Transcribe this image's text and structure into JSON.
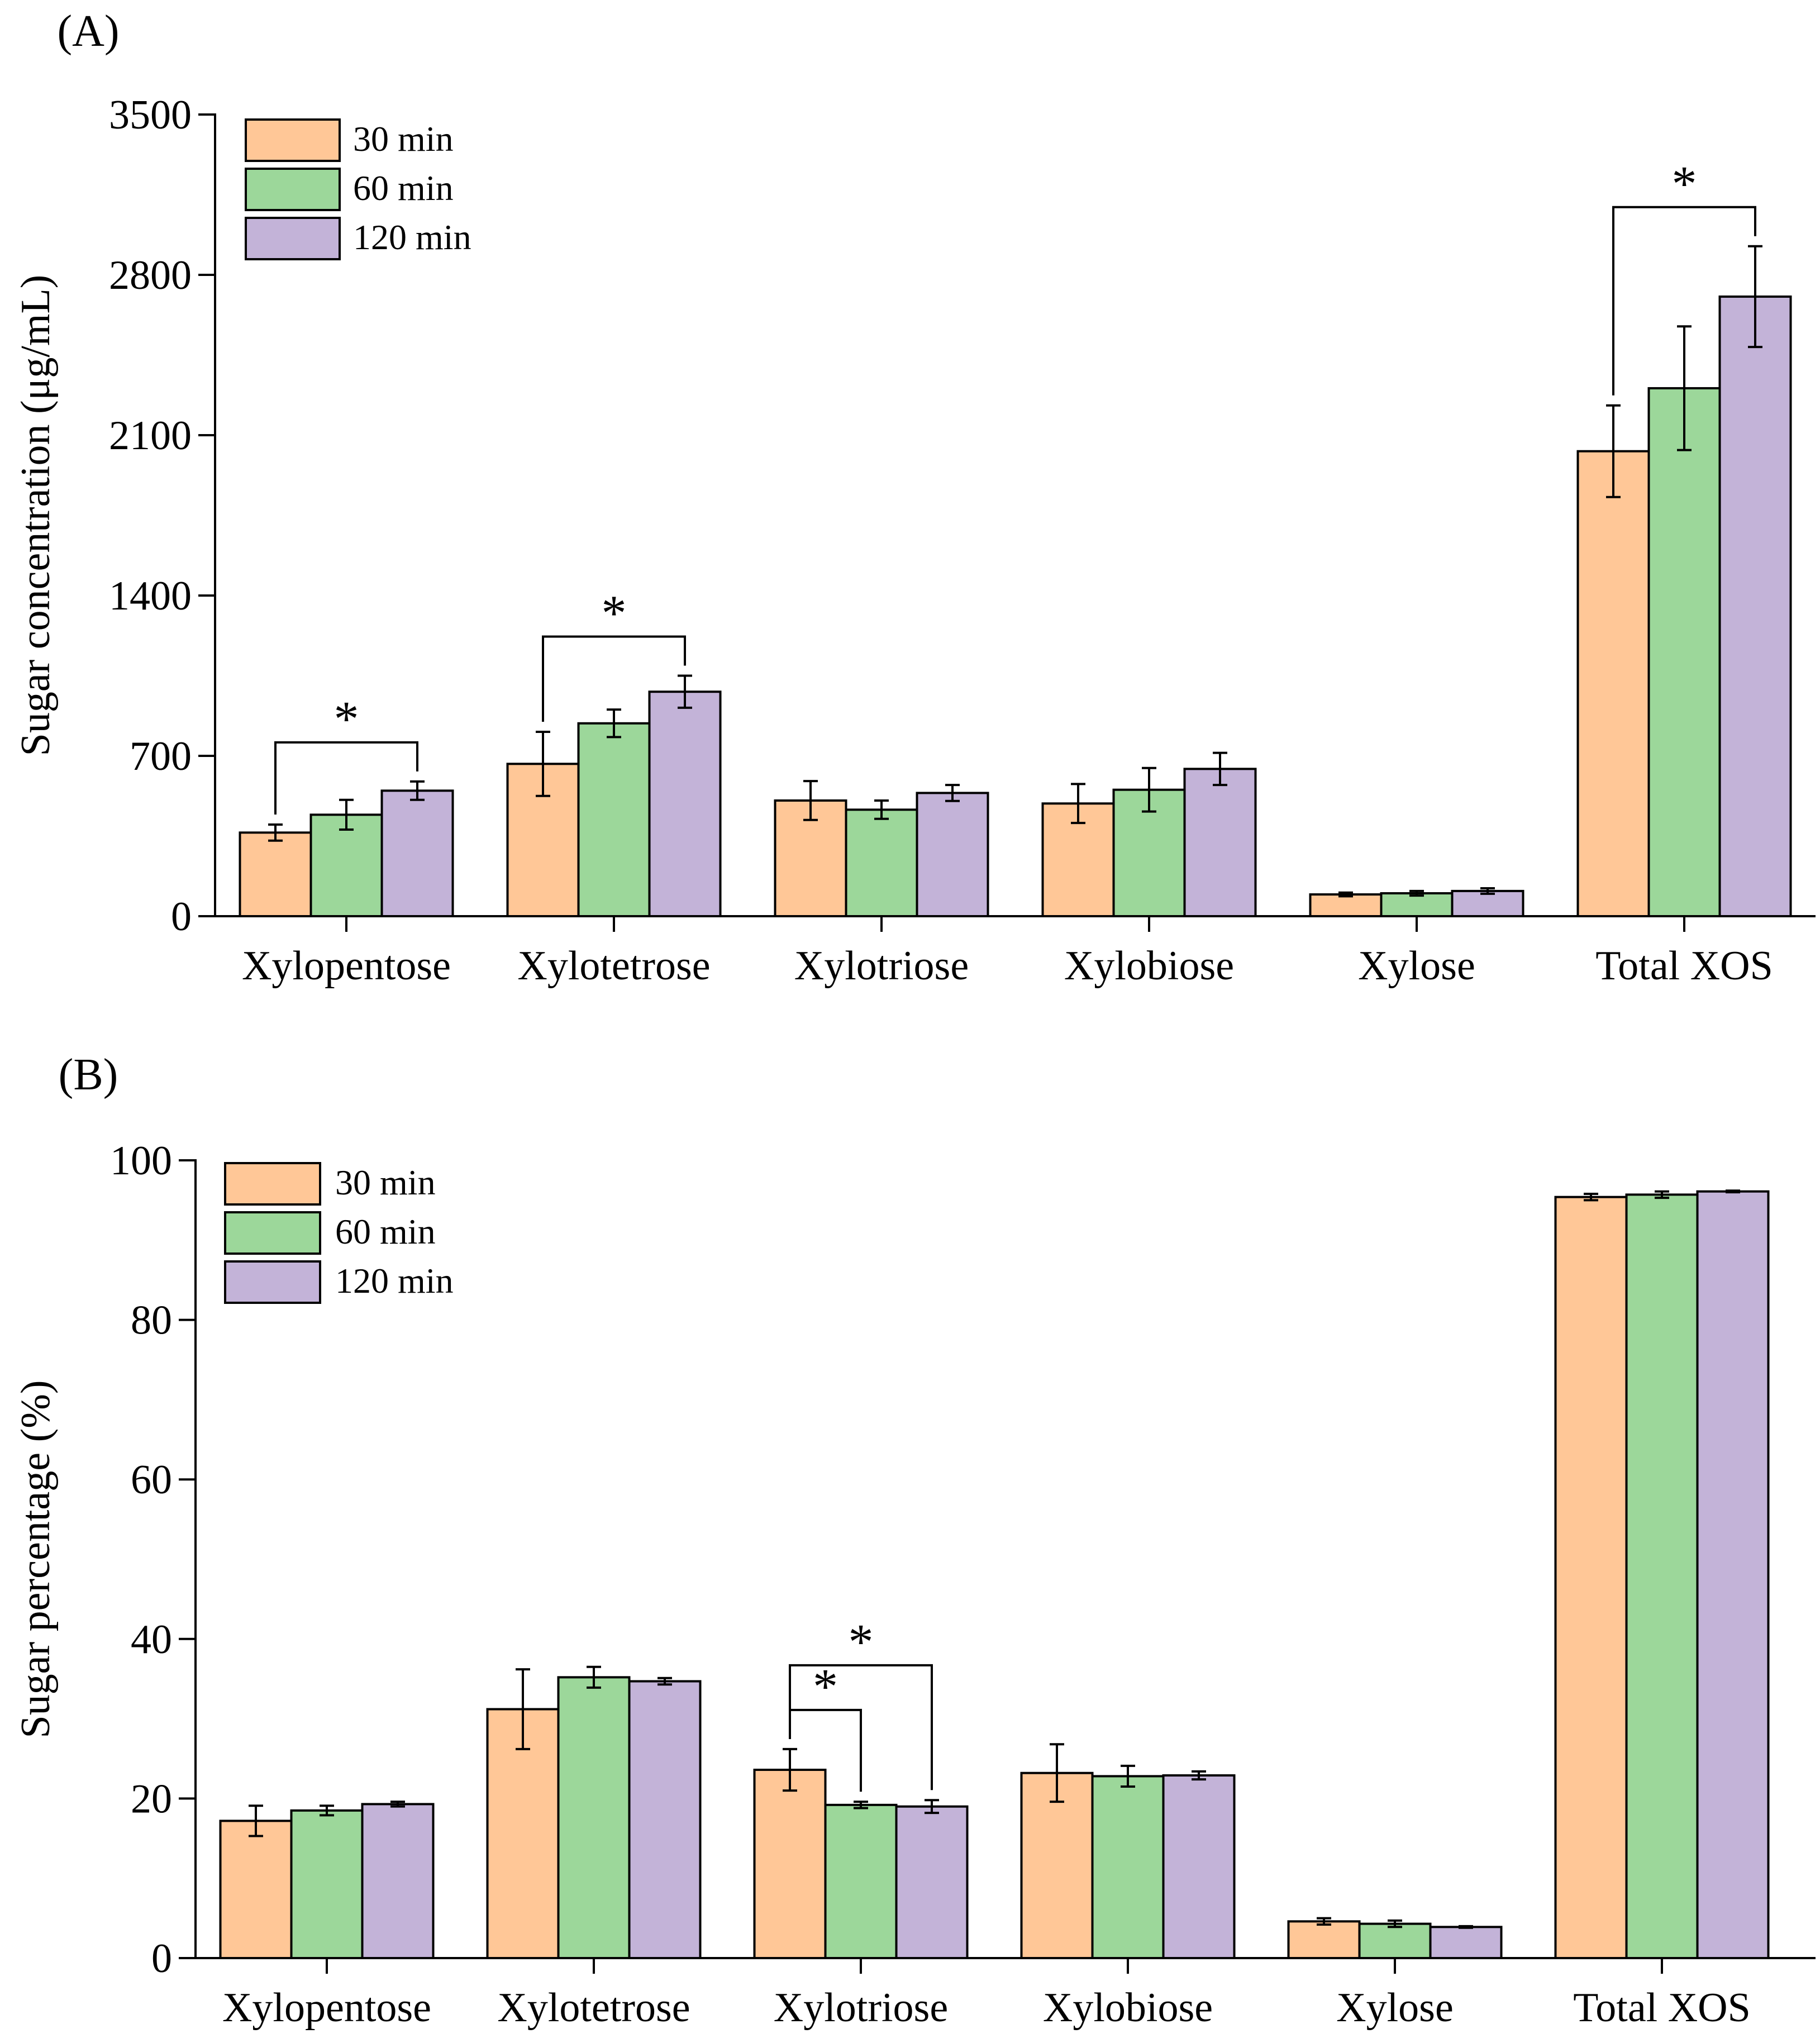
{
  "chart_data": [
    {
      "type": "bar",
      "panel_label": "(A)",
      "title": "",
      "xlabel": "",
      "ylabel": "Sugar concentration (μg/mL)",
      "ylim": [
        0,
        3500
      ],
      "yticks": [
        0,
        700,
        1400,
        2100,
        2800,
        3500
      ],
      "categories": [
        "Xylopentose",
        "Xylotetrose",
        "Xylotriose",
        "Xylobiose",
        "Xylose",
        "Total XOS"
      ],
      "series": [
        {
          "name": "30 min",
          "color": "#FFC797",
          "values": [
            365,
            665,
            505,
            492,
            95,
            2030
          ],
          "errors": [
            35,
            140,
            85,
            85,
            8,
            200
          ]
        },
        {
          "name": "60 min",
          "color": "#9CD79A",
          "values": [
            443,
            842,
            465,
            552,
            100,
            2305
          ],
          "errors": [
            65,
            60,
            40,
            95,
            10,
            270
          ]
        },
        {
          "name": "120 min",
          "color": "#C3B3D8",
          "values": [
            548,
            980,
            538,
            643,
            110,
            2705
          ],
          "errors": [
            40,
            70,
            35,
            70,
            12,
            220
          ]
        }
      ],
      "legend": {
        "position": "top-left",
        "entries": [
          "30 min",
          "60 min",
          "120 min"
        ]
      },
      "grid": false,
      "significance": [
        {
          "category": "Xylopentose",
          "from_series": "30 min",
          "to_series": "120 min",
          "label": "*"
        },
        {
          "category": "Xylotetrose",
          "from_series": "30 min",
          "to_series": "120 min",
          "label": "*"
        },
        {
          "category": "Total XOS",
          "from_series": "30 min",
          "to_series": "120 min",
          "label": "*"
        }
      ]
    },
    {
      "type": "bar",
      "panel_label": "(B)",
      "title": "",
      "xlabel": "",
      "ylabel": "Sugar percentage (%)",
      "ylim": [
        0,
        100
      ],
      "yticks": [
        0,
        20,
        40,
        60,
        80,
        100
      ],
      "categories": [
        "Xylopentose",
        "Xylotetrose",
        "Xylotriose",
        "Xylobiose",
        "Xylose",
        "Total XOS"
      ],
      "series": [
        {
          "name": "30 min",
          "color": "#FFC797",
          "values": [
            17.2,
            31.2,
            23.6,
            23.2,
            4.6,
            95.4
          ],
          "errors": [
            1.9,
            5.0,
            2.6,
            3.6,
            0.4,
            0.4
          ]
        },
        {
          "name": "60 min",
          "color": "#9CD79A",
          "values": [
            18.5,
            35.2,
            19.2,
            22.8,
            4.3,
            95.7
          ],
          "errors": [
            0.6,
            1.3,
            0.4,
            1.3,
            0.4,
            0.4
          ]
        },
        {
          "name": "120 min",
          "color": "#C3B3D8",
          "values": [
            19.3,
            34.7,
            19.0,
            22.9,
            3.9,
            96.1
          ],
          "errors": [
            0.3,
            0.4,
            0.8,
            0.5,
            0.1,
            0.1
          ]
        }
      ],
      "legend": {
        "position": "top-left",
        "entries": [
          "30 min",
          "60 min",
          "120 min"
        ]
      },
      "grid": false,
      "significance": [
        {
          "category": "Xylotriose",
          "from_series": "30 min",
          "to_series": "60 min",
          "label": "*"
        },
        {
          "category": "Xylotriose",
          "from_series": "30 min",
          "to_series": "120 min",
          "label": "*"
        }
      ]
    }
  ]
}
